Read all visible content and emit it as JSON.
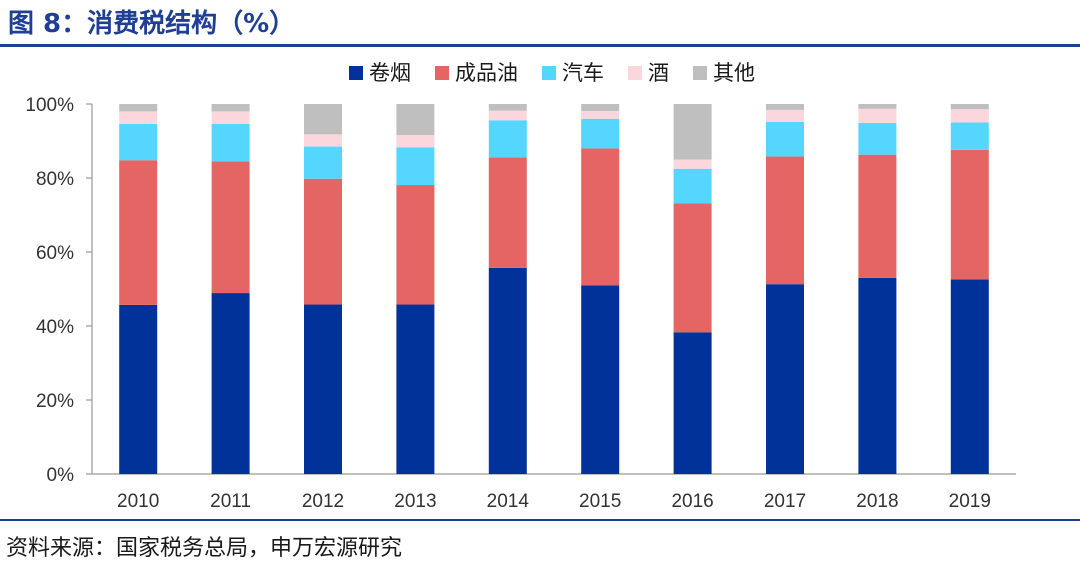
{
  "header": {
    "title": "图 8：消费税结构（%）"
  },
  "footer": {
    "source": "资料来源：国家税务总局，申万宏源研究"
  },
  "chart_data": {
    "type": "bar",
    "stacked": true,
    "title": "消费税结构（%）",
    "categories": [
      "2010",
      "2011",
      "2012",
      "2013",
      "2014",
      "2015",
      "2016",
      "2017",
      "2018",
      "2019"
    ],
    "series": [
      {
        "name": "卷烟",
        "color": "#003299",
        "values": [
          45.7,
          48.9,
          45.8,
          45.8,
          55.7,
          51.0,
          38.3,
          51.3,
          53.0,
          52.6
        ]
      },
      {
        "name": "成品油",
        "color": "#e46563",
        "values": [
          39.1,
          35.6,
          34.0,
          32.3,
          29.9,
          37.0,
          34.8,
          34.5,
          33.3,
          35.0
        ]
      },
      {
        "name": "汽车",
        "color": "#55d6ff",
        "values": [
          9.8,
          10.1,
          8.7,
          10.2,
          10.0,
          8.0,
          9.4,
          9.4,
          8.6,
          7.4
        ]
      },
      {
        "name": "酒",
        "color": "#fbd7dd",
        "values": [
          3.4,
          3.4,
          3.3,
          3.3,
          2.6,
          2.1,
          2.5,
          3.2,
          3.8,
          3.6
        ]
      },
      {
        "name": "其他",
        "color": "#bfbfbf",
        "values": [
          2.0,
          2.0,
          8.2,
          8.4,
          1.8,
          1.9,
          15.0,
          1.6,
          1.3,
          1.4
        ]
      }
    ],
    "ylim": [
      0,
      100
    ],
    "yticks": [
      0,
      20,
      40,
      60,
      80,
      100
    ],
    "ytick_labels": [
      "0%",
      "20%",
      "40%",
      "60%",
      "80%",
      "100%"
    ],
    "xlabel": "",
    "ylabel": "",
    "grid": false,
    "legend_position": "top"
  }
}
